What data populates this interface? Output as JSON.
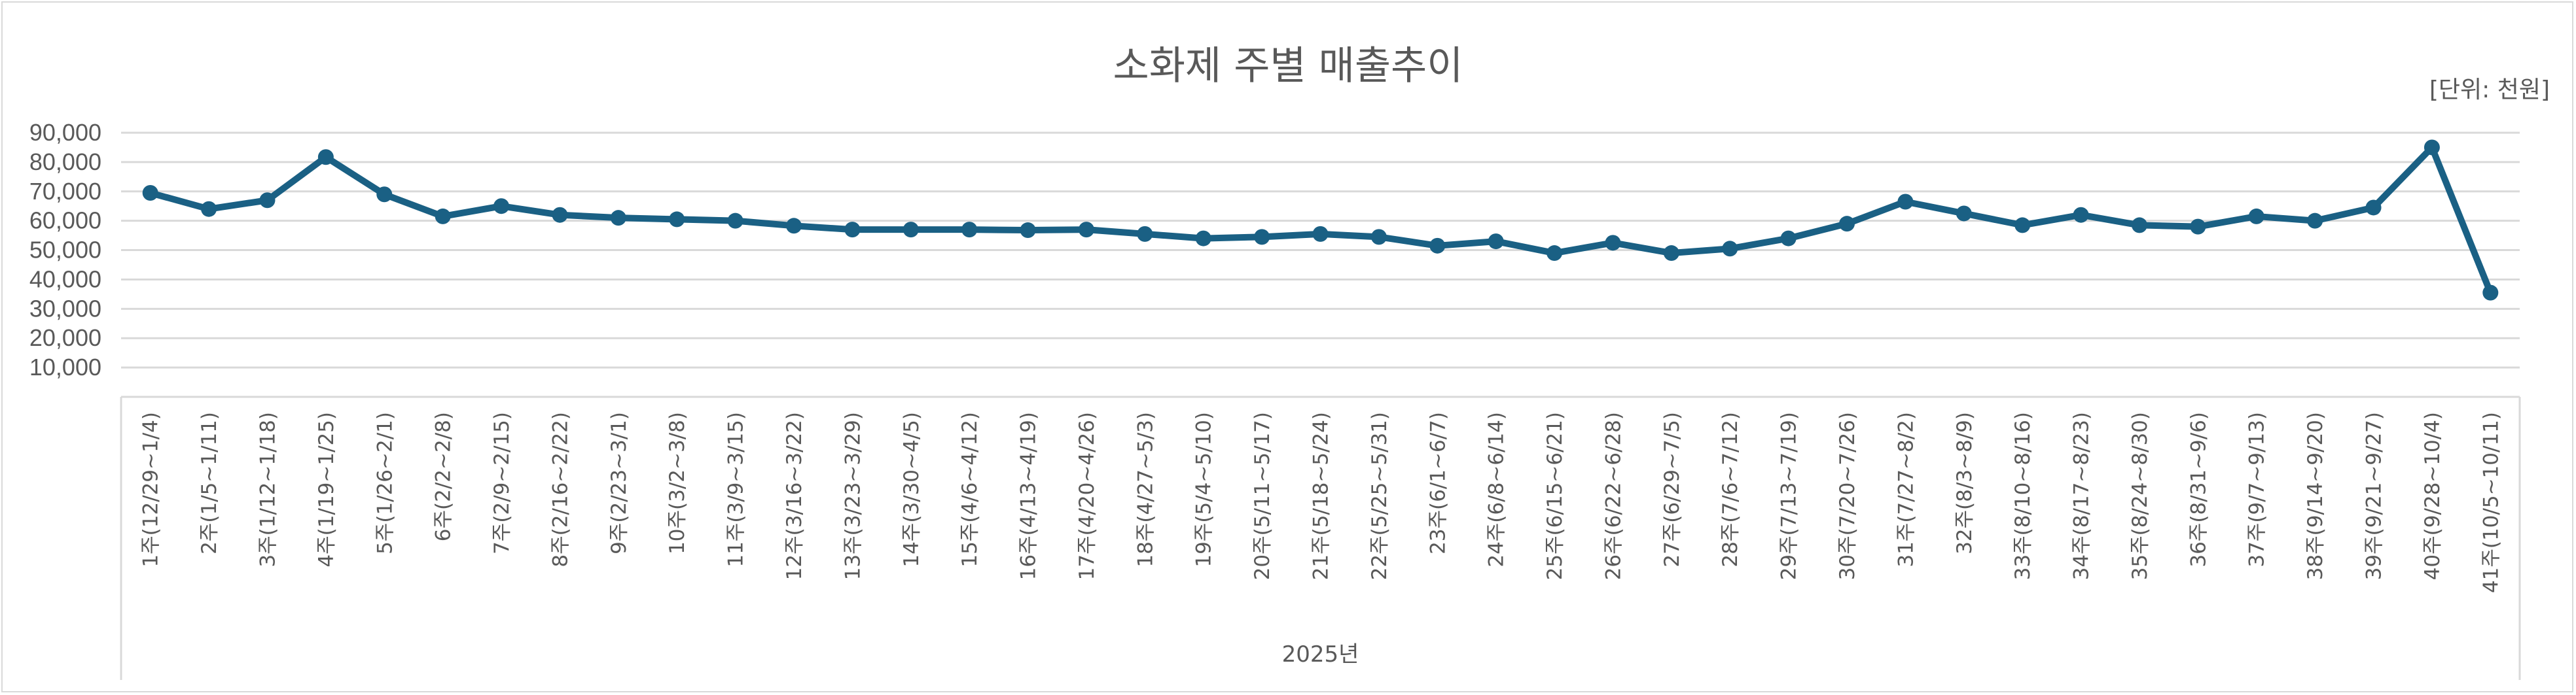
{
  "chart_data": {
    "type": "line",
    "title": "소화제 주별 매출추이",
    "unit_label": "[단위: 천원]",
    "xlabel": "2025년",
    "ylabel": "",
    "ylim": [
      0,
      90000
    ],
    "yticks": [
      "10,000",
      "20,000",
      "30,000",
      "40,000",
      "50,000",
      "60,000",
      "70,000",
      "80,000",
      "90,000"
    ],
    "grid": true,
    "color": "#1a6084",
    "categories": [
      "1주(12/29~1/4)",
      "2주(1/5~1/11)",
      "3주(1/12~1/18)",
      "4주(1/19~1/25)",
      "5주(1/26~2/1)",
      "6주(2/2~2/8)",
      "7주(2/9~2/15)",
      "8주(2/16~2/22)",
      "9주(2/23~3/1)",
      "10주(3/2~3/8)",
      "11주(3/9~3/15)",
      "12주(3/16~3/22)",
      "13주(3/23~3/29)",
      "14주(3/30~4/5)",
      "15주(4/6~4/12)",
      "16주(4/13~4/19)",
      "17주(4/20~4/26)",
      "18주(4/27~5/3)",
      "19주(5/4~5/10)",
      "20주(5/11~5/17)",
      "21주(5/18~5/24)",
      "22주(5/25~5/31)",
      "23주(6/1~6/7)",
      "24주(6/8~6/14)",
      "25주(6/15~6/21)",
      "26주(6/22~6/28)",
      "27주(6/29~7/5)",
      "28주(7/6~7/12)",
      "29주(7/13~7/19)",
      "30주(7/20~7/26)",
      "31주(7/27~8/2)",
      "32주(8/3~8/9)",
      "33주(8/10~8/16)",
      "34주(8/17~8/23)",
      "35주(8/24~8/30)",
      "36주(8/31~9/6)",
      "37주(9/7~9/13)",
      "38주(9/14~9/20)",
      "39주(9/21~9/27)",
      "40주(9/28~10/4)",
      "41주(10/5~10/11)"
    ],
    "values": [
      69500,
      64000,
      67000,
      81700,
      69000,
      61500,
      65000,
      62000,
      61000,
      60500,
      60000,
      58300,
      57000,
      57000,
      57000,
      56800,
      57000,
      55500,
      54000,
      54500,
      55500,
      54500,
      51500,
      53000,
      49000,
      52500,
      49000,
      50500,
      54000,
      59000,
      66500,
      62500,
      58500,
      62000,
      58500,
      58000,
      61500,
      60000,
      64500,
      85000,
      35500
    ]
  }
}
